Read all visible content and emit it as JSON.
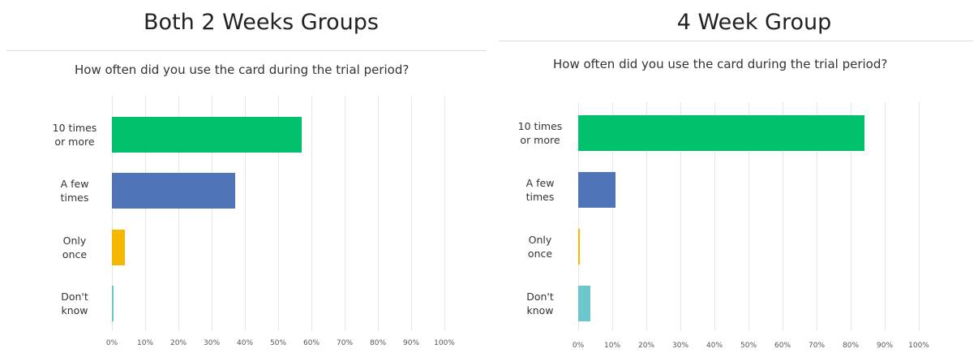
{
  "chart_data": [
    {
      "type": "bar",
      "title": "Both 2 Weeks Groups",
      "subtitle": "How often did you use the card during the trial period?",
      "categories": [
        "10 times or more",
        "A few times",
        "Only once",
        "Don't know"
      ],
      "values": [
        57,
        37,
        4,
        0.5
      ],
      "colors": [
        "#00c06b",
        "#4f74b8",
        "#f5b800",
        "#6cc7cc"
      ],
      "xlim": [
        0,
        100
      ],
      "xticks": [
        {
          "value": 0,
          "label": "0%"
        },
        {
          "value": 10,
          "label": "10%"
        },
        {
          "value": 20,
          "label": "20%"
        },
        {
          "value": 30,
          "label": "30%"
        },
        {
          "value": 40,
          "label": "40%"
        },
        {
          "value": 50,
          "label": "50%"
        },
        {
          "value": 60,
          "label": "60%"
        },
        {
          "value": 70,
          "label": "70%"
        },
        {
          "value": 80,
          "label": "80%"
        },
        {
          "value": 90,
          "label": "90%"
        },
        {
          "value": 100,
          "label": "100%"
        }
      ],
      "grid": true
    },
    {
      "type": "bar",
      "title": "4 Week Group",
      "subtitle": "How often did you use the card during the trial period?",
      "categories": [
        "10 times or more",
        "A few times",
        "Only once",
        "Don't know"
      ],
      "values": [
        84,
        11,
        0.5,
        3.5
      ],
      "colors": [
        "#00c06b",
        "#4f74b8",
        "#f5b800",
        "#6cc7cc"
      ],
      "xlim": [
        0,
        100
      ],
      "xticks": [
        {
          "value": 0,
          "label": "0%"
        },
        {
          "value": 10,
          "label": "10%"
        },
        {
          "value": 20,
          "label": "20%"
        },
        {
          "value": 30,
          "label": "30%"
        },
        {
          "value": 40,
          "label": "40%"
        },
        {
          "value": 50,
          "label": "50%"
        },
        {
          "value": 60,
          "label": "60%"
        },
        {
          "value": 70,
          "label": "70%"
        },
        {
          "value": 80,
          "label": "80%"
        },
        {
          "value": 90,
          "label": "90%"
        },
        {
          "value": 100,
          "label": "100%"
        }
      ],
      "grid": true
    }
  ]
}
